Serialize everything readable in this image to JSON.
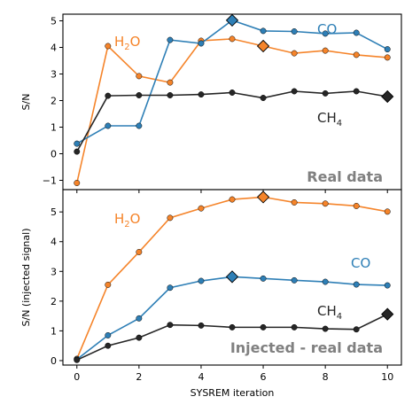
{
  "chart_data": [
    {
      "type": "line",
      "panel_label": "Real data",
      "ylabel": "S/N",
      "xlabel": "",
      "xlim": [
        -0.45,
        10.45
      ],
      "ylim": [
        -1.35,
        5.25
      ],
      "yticks": [
        -1,
        0,
        1,
        2,
        3,
        4,
        5
      ],
      "ytick_labels": [
        "−1",
        "0",
        "1",
        "2",
        "3",
        "4",
        "5"
      ],
      "xticks": [
        0,
        2,
        4,
        6,
        8,
        10
      ],
      "x": [
        0,
        1,
        2,
        3,
        4,
        5,
        6,
        7,
        8,
        9,
        10
      ],
      "series": [
        {
          "key": "h2o",
          "name": "H₂O",
          "color": "#f5842a",
          "values": [
            -1.1,
            4.05,
            2.92,
            2.68,
            4.25,
            4.32,
            4.05,
            3.78,
            3.88,
            3.72,
            3.62
          ],
          "highlight_index": 6
        },
        {
          "key": "co",
          "name": "CO",
          "color": "#2e7fb6",
          "values": [
            0.38,
            1.05,
            1.05,
            4.28,
            4.15,
            5.02,
            4.62,
            4.6,
            4.52,
            4.55,
            3.93
          ],
          "highlight_index": 5
        },
        {
          "key": "ch4",
          "name": "CH₄",
          "color": "#262626",
          "values": [
            0.08,
            2.18,
            2.2,
            2.2,
            2.23,
            2.3,
            2.1,
            2.35,
            2.27,
            2.35,
            2.15
          ],
          "highlight_index": 10
        }
      ]
    },
    {
      "type": "line",
      "panel_label": "Injected - real data",
      "ylabel": "S/N (injected signal)",
      "xlabel": "SYSREM iteration",
      "xlim": [
        -0.45,
        10.45
      ],
      "ylim": [
        -0.15,
        5.75
      ],
      "yticks": [
        0,
        1,
        2,
        3,
        4,
        5
      ],
      "ytick_labels": [
        "0",
        "1",
        "2",
        "3",
        "4",
        "5"
      ],
      "xticks": [
        0,
        2,
        4,
        6,
        8,
        10
      ],
      "xtick_labels": [
        "0",
        "2",
        "4",
        "6",
        "8",
        "10"
      ],
      "x": [
        0,
        1,
        2,
        3,
        4,
        5,
        6,
        7,
        8,
        9,
        10
      ],
      "series": [
        {
          "key": "h2o",
          "name": "H₂O",
          "color": "#f5842a",
          "values": [
            0.06,
            2.55,
            3.65,
            4.8,
            5.12,
            5.42,
            5.5,
            5.32,
            5.28,
            5.2,
            5.01
          ],
          "highlight_index": 6
        },
        {
          "key": "co",
          "name": "CO",
          "color": "#2e7fb6",
          "values": [
            0.04,
            0.85,
            1.42,
            2.45,
            2.68,
            2.82,
            2.76,
            2.7,
            2.65,
            2.56,
            2.53
          ],
          "highlight_index": 5
        },
        {
          "key": "ch4",
          "name": "CH₄",
          "color": "#262626",
          "values": [
            0.02,
            0.5,
            0.77,
            1.2,
            1.18,
            1.12,
            1.12,
            1.12,
            1.07,
            1.05,
            1.56
          ],
          "highlight_index": 10
        }
      ]
    }
  ]
}
